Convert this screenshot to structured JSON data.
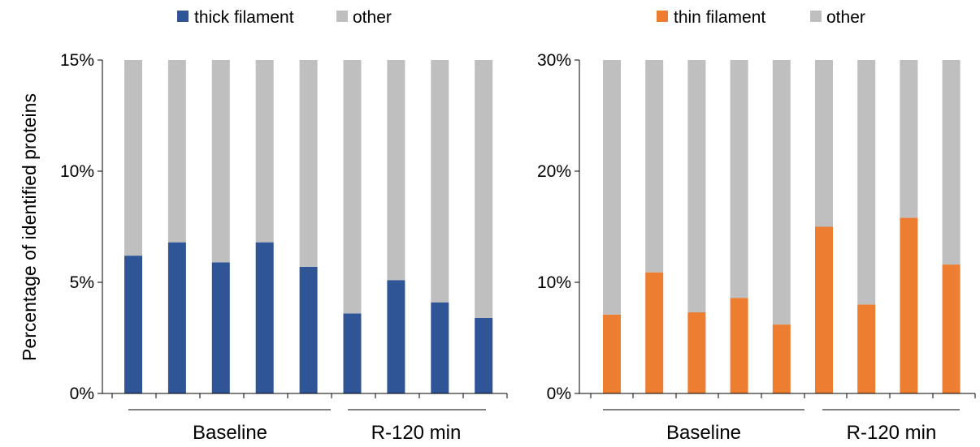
{
  "chart_data": [
    {
      "type": "bar",
      "stacked": true,
      "percent_scale": true,
      "ylabel": "Percentage of identified proteins",
      "ylim": [
        0,
        15
      ],
      "yticks": [
        "0%",
        "5%",
        "10%",
        "15%"
      ],
      "group_labels": [
        "Baseline",
        "R-120 min"
      ],
      "groups": [
        5,
        4
      ],
      "legend_position": "top",
      "series": [
        {
          "name": "thick filament",
          "color": "#2f5597",
          "values": [
            6.2,
            6.8,
            5.9,
            6.8,
            5.7,
            3.6,
            5.1,
            4.1,
            3.4
          ]
        },
        {
          "name": "other",
          "color": "#bfbfbf",
          "values": [
            8.8,
            8.2,
            9.1,
            8.2,
            9.3,
            11.4,
            9.9,
            10.9,
            11.6
          ]
        }
      ]
    },
    {
      "type": "bar",
      "stacked": true,
      "percent_scale": true,
      "ylabel": "",
      "ylim": [
        0,
        30
      ],
      "yticks": [
        "0%",
        "10%",
        "20%",
        "30%"
      ],
      "group_labels": [
        "Baseline",
        "R-120 min"
      ],
      "groups": [
        5,
        4
      ],
      "legend_position": "top",
      "series": [
        {
          "name": "thin filament",
          "color": "#ed7d31",
          "values": [
            7.1,
            10.9,
            7.3,
            8.6,
            6.2,
            15.0,
            8.0,
            15.8,
            11.6
          ]
        },
        {
          "name": "other",
          "color": "#bfbfbf",
          "values": [
            22.9,
            19.1,
            22.7,
            21.4,
            23.8,
            15.0,
            22.0,
            14.2,
            18.4
          ]
        }
      ]
    }
  ]
}
